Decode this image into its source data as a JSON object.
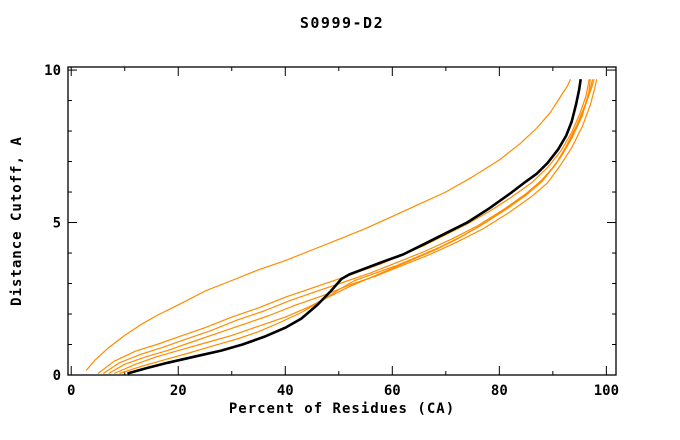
{
  "window": {
    "background": "#ffffff"
  },
  "chart_data": {
    "type": "line",
    "title": "S0999-D2",
    "xlabel": "Percent of Residues (CA)",
    "ylabel": "Distance Cutoff, A",
    "xlim": [
      0,
      100
    ],
    "ylim": [
      0,
      10
    ],
    "grid": false,
    "legend": "none",
    "axis_color": "#000000",
    "x_major_ticks": [
      0,
      20,
      40,
      60,
      80,
      100
    ],
    "x_minor_ticks": [
      10,
      30,
      50,
      70,
      90
    ],
    "x_tick_labels": [
      "0",
      "20",
      "40",
      "60",
      "80",
      "100"
    ],
    "y_major_ticks": [
      0,
      5,
      10
    ],
    "y_minor_ticks": [
      1,
      2,
      3,
      4,
      6,
      7,
      8,
      9
    ],
    "y_tick_labels": [
      "0",
      "5",
      "10"
    ],
    "series": [
      {
        "id": "curve-1-orange-high",
        "color": "#ff8c00",
        "width": 1.2,
        "points": [
          [
            2.8,
            0.15
          ],
          [
            4.5,
            0.5
          ],
          [
            7,
            0.9
          ],
          [
            10,
            1.3
          ],
          [
            13,
            1.65
          ],
          [
            16,
            1.95
          ],
          [
            20,
            2.3
          ],
          [
            25,
            2.75
          ],
          [
            30,
            3.1
          ],
          [
            35,
            3.45
          ],
          [
            40,
            3.75
          ],
          [
            45,
            4.1
          ],
          [
            50,
            4.45
          ],
          [
            55,
            4.8
          ],
          [
            60,
            5.2
          ],
          [
            65,
            5.6
          ],
          [
            70,
            6.0
          ],
          [
            75,
            6.5
          ],
          [
            80,
            7.05
          ],
          [
            84,
            7.6
          ],
          [
            87,
            8.1
          ],
          [
            89.5,
            8.6
          ],
          [
            91.5,
            9.15
          ],
          [
            92.8,
            9.5
          ],
          [
            93.3,
            9.7
          ]
        ]
      },
      {
        "id": "curve-2-orange",
        "color": "#ff8c00",
        "width": 1.2,
        "points": [
          [
            5,
            0.05
          ],
          [
            8,
            0.45
          ],
          [
            12,
            0.78
          ],
          [
            16,
            1.0
          ],
          [
            20,
            1.25
          ],
          [
            25,
            1.55
          ],
          [
            30,
            1.9
          ],
          [
            35,
            2.2
          ],
          [
            40,
            2.55
          ],
          [
            45,
            2.85
          ],
          [
            50,
            3.15
          ],
          [
            54,
            3.4
          ],
          [
            58,
            3.65
          ],
          [
            62,
            3.95
          ],
          [
            66,
            4.25
          ],
          [
            70,
            4.6
          ],
          [
            74,
            4.95
          ],
          [
            78,
            5.35
          ],
          [
            82,
            5.8
          ],
          [
            86,
            6.3
          ],
          [
            89,
            6.8
          ],
          [
            91.5,
            7.35
          ],
          [
            93.5,
            7.95
          ],
          [
            95,
            8.55
          ],
          [
            96.2,
            9.15
          ],
          [
            96.8,
            9.7
          ]
        ]
      },
      {
        "id": "curve-3-orange",
        "color": "#ff8c00",
        "width": 1.2,
        "points": [
          [
            6,
            0.05
          ],
          [
            9,
            0.4
          ],
          [
            13,
            0.68
          ],
          [
            17,
            0.9
          ],
          [
            21,
            1.15
          ],
          [
            26,
            1.45
          ],
          [
            31,
            1.8
          ],
          [
            36,
            2.1
          ],
          [
            41,
            2.45
          ],
          [
            46,
            2.75
          ],
          [
            51,
            3.05
          ],
          [
            56,
            3.35
          ],
          [
            61,
            3.7
          ],
          [
            66,
            4.05
          ],
          [
            71,
            4.45
          ],
          [
            76,
            4.9
          ],
          [
            81,
            5.45
          ],
          [
            85,
            5.95
          ],
          [
            88,
            6.4
          ],
          [
            90.5,
            6.9
          ],
          [
            92.5,
            7.5
          ],
          [
            94.5,
            8.2
          ],
          [
            96,
            8.85
          ],
          [
            97.1,
            9.45
          ],
          [
            97.4,
            9.7
          ]
        ]
      },
      {
        "id": "curve-4-orange",
        "color": "#ff8c00",
        "width": 1.2,
        "points": [
          [
            7,
            0.05
          ],
          [
            10,
            0.35
          ],
          [
            14,
            0.6
          ],
          [
            18,
            0.8
          ],
          [
            22,
            1.05
          ],
          [
            27,
            1.35
          ],
          [
            32,
            1.65
          ],
          [
            37,
            1.95
          ],
          [
            42,
            2.3
          ],
          [
            47,
            2.6
          ],
          [
            52,
            2.95
          ],
          [
            57,
            3.25
          ],
          [
            62,
            3.6
          ],
          [
            67,
            3.95
          ],
          [
            72,
            4.35
          ],
          [
            77,
            4.8
          ],
          [
            82,
            5.35
          ],
          [
            86,
            5.85
          ],
          [
            89,
            6.3
          ],
          [
            91.5,
            6.9
          ],
          [
            93.5,
            7.45
          ],
          [
            95.5,
            8.15
          ],
          [
            97,
            8.85
          ],
          [
            97.9,
            9.45
          ],
          [
            98.2,
            9.7
          ]
        ]
      },
      {
        "id": "curve-5-orange",
        "color": "#ff8c00",
        "width": 1.2,
        "points": [
          [
            8,
            0.05
          ],
          [
            12,
            0.35
          ],
          [
            16,
            0.6
          ],
          [
            20,
            0.8
          ],
          [
            25,
            1.05
          ],
          [
            30,
            1.3
          ],
          [
            35,
            1.6
          ],
          [
            40,
            1.9
          ],
          [
            44,
            2.2
          ],
          [
            48,
            2.55
          ],
          [
            52,
            2.9
          ],
          [
            56,
            3.2
          ],
          [
            60,
            3.5
          ],
          [
            64,
            3.8
          ],
          [
            68,
            4.1
          ],
          [
            72,
            4.45
          ],
          [
            76,
            4.85
          ],
          [
            80,
            5.3
          ],
          [
            84,
            5.8
          ],
          [
            87,
            6.2
          ],
          [
            89.5,
            6.7
          ],
          [
            91.5,
            7.15
          ],
          [
            93.5,
            7.75
          ],
          [
            95.5,
            8.5
          ],
          [
            96.7,
            9.25
          ],
          [
            97,
            9.7
          ]
        ]
      },
      {
        "id": "curve-6-orange",
        "color": "#ff8c00",
        "width": 1.2,
        "points": [
          [
            9,
            0.05
          ],
          [
            13,
            0.28
          ],
          [
            17,
            0.48
          ],
          [
            22,
            0.72
          ],
          [
            27,
            0.98
          ],
          [
            31,
            1.18
          ],
          [
            35,
            1.42
          ],
          [
            39,
            1.72
          ],
          [
            43,
            2.05
          ],
          [
            47,
            2.45
          ],
          [
            50,
            2.8
          ],
          [
            53,
            3.1
          ],
          [
            57,
            3.35
          ],
          [
            61,
            3.6
          ],
          [
            65,
            3.9
          ],
          [
            69,
            4.2
          ],
          [
            73,
            4.55
          ],
          [
            77,
            4.95
          ],
          [
            81,
            5.4
          ],
          [
            85,
            5.9
          ],
          [
            88,
            6.35
          ],
          [
            90.5,
            6.9
          ],
          [
            92.5,
            7.45
          ],
          [
            94.5,
            8.15
          ],
          [
            96,
            8.8
          ],
          [
            97.3,
            9.45
          ],
          [
            97.7,
            9.7
          ]
        ]
      },
      {
        "id": "curve-7-black-main",
        "color": "#000000",
        "width": 2.6,
        "points": [
          [
            10.5,
            0.05
          ],
          [
            14,
            0.22
          ],
          [
            18,
            0.4
          ],
          [
            23,
            0.6
          ],
          [
            28,
            0.8
          ],
          [
            32,
            1.0
          ],
          [
            36,
            1.25
          ],
          [
            40,
            1.55
          ],
          [
            43,
            1.85
          ],
          [
            46,
            2.3
          ],
          [
            48.5,
            2.75
          ],
          [
            50.5,
            3.15
          ],
          [
            52,
            3.3
          ],
          [
            55,
            3.5
          ],
          [
            58,
            3.7
          ],
          [
            62,
            3.95
          ],
          [
            66,
            4.3
          ],
          [
            70,
            4.65
          ],
          [
            74,
            5.0
          ],
          [
            78,
            5.45
          ],
          [
            82,
            5.95
          ],
          [
            85,
            6.35
          ],
          [
            87,
            6.6
          ],
          [
            89,
            6.95
          ],
          [
            91,
            7.4
          ],
          [
            92.5,
            7.85
          ],
          [
            93.5,
            8.3
          ],
          [
            94.3,
            8.85
          ],
          [
            94.9,
            9.35
          ],
          [
            95.2,
            9.7
          ]
        ]
      }
    ]
  }
}
